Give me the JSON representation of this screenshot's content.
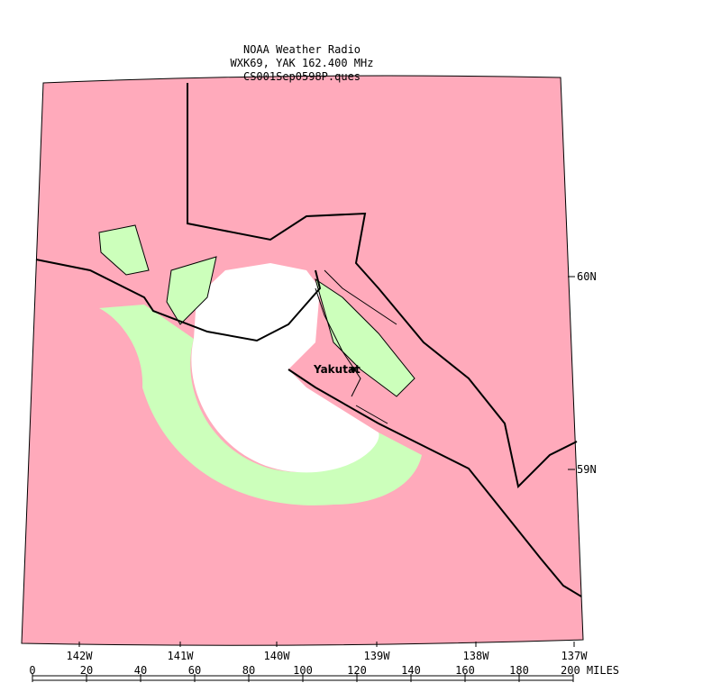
{
  "header": {
    "lines": [
      "NOAA Weather Radio",
      "WXK69, YAK 162.400 MHz",
      "CS001Sep0598P.ques"
    ]
  },
  "place_label": "Yakutat",
  "latitude_labels": [
    "60N",
    "59N"
  ],
  "longitude_labels": [
    "142W",
    "141W",
    "140W",
    "139W",
    "138W",
    "137W"
  ],
  "scale": {
    "ticks": [
      0,
      20,
      40,
      60,
      80,
      100,
      120,
      140,
      160,
      180
    ],
    "end_label": "200 MILES"
  }
}
